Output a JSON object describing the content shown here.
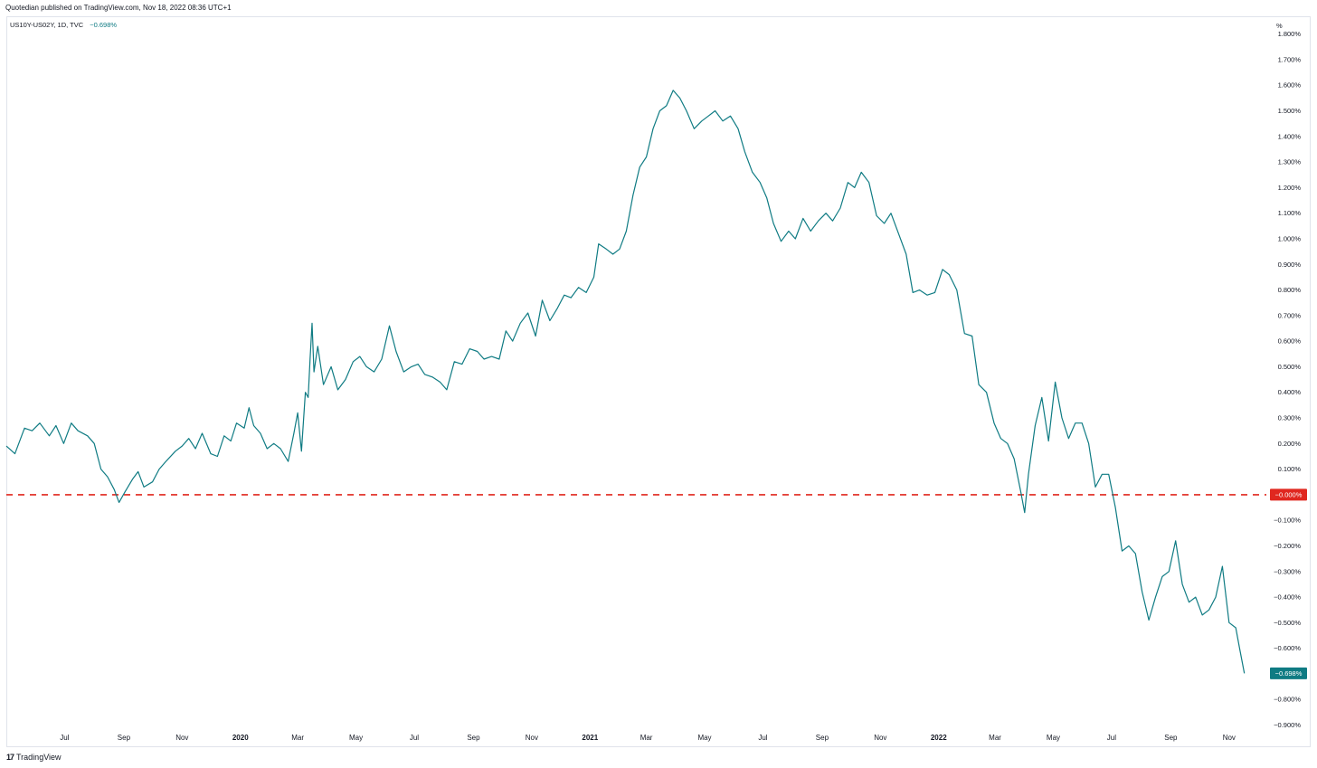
{
  "header": {
    "publish_text": "Quotedian published on TradingView.com, Nov 18, 2022 08:36 UTC+1"
  },
  "legend": {
    "symbol_text": "US10Y-US02Y, 1D, TVC",
    "last_value_text": "−0.698%"
  },
  "footer": {
    "logo_mark": "17",
    "logo_text": "TradingView"
  },
  "colors": {
    "series": "#0f7b83",
    "zero_line": "#e0271f",
    "badge_text": "#ffffff"
  },
  "chart_data": {
    "type": "line",
    "title": "",
    "xlabel": "",
    "ylabel": "%",
    "y_unit": "%",
    "ylim": [
      -0.93,
      1.82
    ],
    "xlim": [
      "2019-05-01",
      "2022-12-10"
    ],
    "grid": false,
    "legend": "top-left",
    "x_ticks": [
      {
        "date": "2019-07-01",
        "label": "Jul"
      },
      {
        "date": "2019-09-01",
        "label": "Sep"
      },
      {
        "date": "2019-11-01",
        "label": "Nov"
      },
      {
        "date": "2020-01-01",
        "label": "2020",
        "bold": true
      },
      {
        "date": "2020-03-01",
        "label": "Mar"
      },
      {
        "date": "2020-05-01",
        "label": "May"
      },
      {
        "date": "2020-07-01",
        "label": "Jul"
      },
      {
        "date": "2020-09-01",
        "label": "Sep"
      },
      {
        "date": "2020-11-01",
        "label": "Nov"
      },
      {
        "date": "2021-01-01",
        "label": "2021",
        "bold": true
      },
      {
        "date": "2021-03-01",
        "label": "Mar"
      },
      {
        "date": "2021-05-01",
        "label": "May"
      },
      {
        "date": "2021-07-01",
        "label": "Jul"
      },
      {
        "date": "2021-09-01",
        "label": "Sep"
      },
      {
        "date": "2021-11-01",
        "label": "Nov"
      },
      {
        "date": "2022-01-01",
        "label": "2022",
        "bold": true
      },
      {
        "date": "2022-03-01",
        "label": "Mar"
      },
      {
        "date": "2022-05-01",
        "label": "May"
      },
      {
        "date": "2022-07-01",
        "label": "Jul"
      },
      {
        "date": "2022-09-01",
        "label": "Sep"
      },
      {
        "date": "2022-11-01",
        "label": "Nov"
      }
    ],
    "y_ticks": [
      {
        "value": 1.8,
        "label": "1.800%"
      },
      {
        "value": 1.7,
        "label": "1.700%"
      },
      {
        "value": 1.6,
        "label": "1.600%"
      },
      {
        "value": 1.5,
        "label": "1.500%"
      },
      {
        "value": 1.4,
        "label": "1.400%"
      },
      {
        "value": 1.3,
        "label": "1.300%"
      },
      {
        "value": 1.2,
        "label": "1.200%"
      },
      {
        "value": 1.1,
        "label": "1.100%"
      },
      {
        "value": 1.0,
        "label": "1.000%"
      },
      {
        "value": 0.9,
        "label": "0.900%"
      },
      {
        "value": 0.8,
        "label": "0.800%"
      },
      {
        "value": 0.7,
        "label": "0.700%"
      },
      {
        "value": 0.6,
        "label": "0.600%"
      },
      {
        "value": 0.5,
        "label": "0.500%"
      },
      {
        "value": 0.4,
        "label": "0.400%"
      },
      {
        "value": 0.3,
        "label": "0.300%"
      },
      {
        "value": 0.2,
        "label": "0.200%"
      },
      {
        "value": 0.1,
        "label": "0.100%"
      },
      {
        "value": -0.1,
        "label": "−0.100%"
      },
      {
        "value": -0.2,
        "label": "−0.200%"
      },
      {
        "value": -0.3,
        "label": "−0.300%"
      },
      {
        "value": -0.4,
        "label": "−0.400%"
      },
      {
        "value": -0.5,
        "label": "−0.500%"
      },
      {
        "value": -0.6,
        "label": "−0.600%"
      },
      {
        "value": -0.7,
        "label": "−0.700%"
      },
      {
        "value": -0.8,
        "label": "−0.800%"
      },
      {
        "value": -0.9,
        "label": "−0.900%"
      }
    ],
    "horizontal_lines": [
      {
        "value": 0.0,
        "label": "−0.000%",
        "style": "dashed",
        "color": "#e0271f"
      }
    ],
    "last_value": {
      "value": -0.698,
      "label": "−0.698%"
    },
    "series": [
      {
        "color": "#0f7b83",
        "points": [
          [
            "2019-05-01",
            0.19
          ],
          [
            "2019-05-10",
            0.16
          ],
          [
            "2019-05-20",
            0.26
          ],
          [
            "2019-05-28",
            0.25
          ],
          [
            "2019-06-05",
            0.28
          ],
          [
            "2019-06-15",
            0.23
          ],
          [
            "2019-06-22",
            0.27
          ],
          [
            "2019-06-30",
            0.2
          ],
          [
            "2019-07-08",
            0.28
          ],
          [
            "2019-07-15",
            0.25
          ],
          [
            "2019-07-25",
            0.23
          ],
          [
            "2019-08-01",
            0.2
          ],
          [
            "2019-08-08",
            0.1
          ],
          [
            "2019-08-15",
            0.07
          ],
          [
            "2019-08-22",
            0.02
          ],
          [
            "2019-08-27",
            -0.03
          ],
          [
            "2019-09-02",
            0.01
          ],
          [
            "2019-09-10",
            0.06
          ],
          [
            "2019-09-16",
            0.09
          ],
          [
            "2019-09-22",
            0.03
          ],
          [
            "2019-10-01",
            0.05
          ],
          [
            "2019-10-08",
            0.1
          ],
          [
            "2019-10-15",
            0.13
          ],
          [
            "2019-10-25",
            0.17
          ],
          [
            "2019-11-01",
            0.19
          ],
          [
            "2019-11-08",
            0.22
          ],
          [
            "2019-11-15",
            0.18
          ],
          [
            "2019-11-22",
            0.24
          ],
          [
            "2019-12-01",
            0.16
          ],
          [
            "2019-12-08",
            0.15
          ],
          [
            "2019-12-15",
            0.23
          ],
          [
            "2019-12-22",
            0.21
          ],
          [
            "2019-12-28",
            0.28
          ],
          [
            "2020-01-05",
            0.26
          ],
          [
            "2020-01-10",
            0.34
          ],
          [
            "2020-01-15",
            0.27
          ],
          [
            "2020-01-22",
            0.24
          ],
          [
            "2020-01-29",
            0.18
          ],
          [
            "2020-02-05",
            0.2
          ],
          [
            "2020-02-12",
            0.18
          ],
          [
            "2020-02-20",
            0.13
          ],
          [
            "2020-02-26",
            0.24
          ],
          [
            "2020-03-01",
            0.32
          ],
          [
            "2020-03-05",
            0.17
          ],
          [
            "2020-03-09",
            0.4
          ],
          [
            "2020-03-12",
            0.38
          ],
          [
            "2020-03-14",
            0.53
          ],
          [
            "2020-03-16",
            0.67
          ],
          [
            "2020-03-18",
            0.48
          ],
          [
            "2020-03-22",
            0.58
          ],
          [
            "2020-03-28",
            0.43
          ],
          [
            "2020-04-05",
            0.5
          ],
          [
            "2020-04-12",
            0.41
          ],
          [
            "2020-04-20",
            0.45
          ],
          [
            "2020-04-28",
            0.52
          ],
          [
            "2020-05-05",
            0.54
          ],
          [
            "2020-05-12",
            0.5
          ],
          [
            "2020-05-20",
            0.48
          ],
          [
            "2020-05-28",
            0.53
          ],
          [
            "2020-06-05",
            0.66
          ],
          [
            "2020-06-12",
            0.56
          ],
          [
            "2020-06-20",
            0.48
          ],
          [
            "2020-06-28",
            0.5
          ],
          [
            "2020-07-05",
            0.51
          ],
          [
            "2020-07-12",
            0.47
          ],
          [
            "2020-07-20",
            0.46
          ],
          [
            "2020-07-28",
            0.44
          ],
          [
            "2020-08-04",
            0.41
          ],
          [
            "2020-08-12",
            0.52
          ],
          [
            "2020-08-20",
            0.51
          ],
          [
            "2020-08-28",
            0.57
          ],
          [
            "2020-09-05",
            0.56
          ],
          [
            "2020-09-12",
            0.53
          ],
          [
            "2020-09-20",
            0.54
          ],
          [
            "2020-09-28",
            0.53
          ],
          [
            "2020-10-05",
            0.64
          ],
          [
            "2020-10-12",
            0.6
          ],
          [
            "2020-10-20",
            0.67
          ],
          [
            "2020-10-28",
            0.71
          ],
          [
            "2020-11-05",
            0.62
          ],
          [
            "2020-11-12",
            0.76
          ],
          [
            "2020-11-20",
            0.68
          ],
          [
            "2020-11-28",
            0.73
          ],
          [
            "2020-12-05",
            0.78
          ],
          [
            "2020-12-12",
            0.77
          ],
          [
            "2020-12-20",
            0.81
          ],
          [
            "2020-12-28",
            0.79
          ],
          [
            "2021-01-05",
            0.85
          ],
          [
            "2021-01-10",
            0.98
          ],
          [
            "2021-01-18",
            0.96
          ],
          [
            "2021-01-25",
            0.94
          ],
          [
            "2021-02-01",
            0.96
          ],
          [
            "2021-02-08",
            1.03
          ],
          [
            "2021-02-15",
            1.17
          ],
          [
            "2021-02-22",
            1.28
          ],
          [
            "2021-03-01",
            1.32
          ],
          [
            "2021-03-08",
            1.43
          ],
          [
            "2021-03-15",
            1.5
          ],
          [
            "2021-03-22",
            1.52
          ],
          [
            "2021-03-29",
            1.58
          ],
          [
            "2021-04-05",
            1.55
          ],
          [
            "2021-04-12",
            1.5
          ],
          [
            "2021-04-20",
            1.43
          ],
          [
            "2021-04-28",
            1.46
          ],
          [
            "2021-05-05",
            1.48
          ],
          [
            "2021-05-12",
            1.5
          ],
          [
            "2021-05-20",
            1.46
          ],
          [
            "2021-05-28",
            1.48
          ],
          [
            "2021-06-05",
            1.43
          ],
          [
            "2021-06-12",
            1.34
          ],
          [
            "2021-06-20",
            1.26
          ],
          [
            "2021-06-28",
            1.22
          ],
          [
            "2021-07-05",
            1.16
          ],
          [
            "2021-07-12",
            1.06
          ],
          [
            "2021-07-20",
            0.99
          ],
          [
            "2021-07-28",
            1.03
          ],
          [
            "2021-08-04",
            1.0
          ],
          [
            "2021-08-12",
            1.08
          ],
          [
            "2021-08-20",
            1.03
          ],
          [
            "2021-08-28",
            1.07
          ],
          [
            "2021-09-05",
            1.1
          ],
          [
            "2021-09-12",
            1.07
          ],
          [
            "2021-09-20",
            1.12
          ],
          [
            "2021-09-28",
            1.22
          ],
          [
            "2021-10-05",
            1.2
          ],
          [
            "2021-10-12",
            1.26
          ],
          [
            "2021-10-20",
            1.22
          ],
          [
            "2021-10-28",
            1.09
          ],
          [
            "2021-11-05",
            1.06
          ],
          [
            "2021-11-12",
            1.1
          ],
          [
            "2021-11-20",
            1.02
          ],
          [
            "2021-11-28",
            0.94
          ],
          [
            "2021-12-05",
            0.79
          ],
          [
            "2021-12-12",
            0.8
          ],
          [
            "2021-12-20",
            0.78
          ],
          [
            "2021-12-28",
            0.79
          ],
          [
            "2022-01-05",
            0.88
          ],
          [
            "2022-01-12",
            0.86
          ],
          [
            "2022-01-20",
            0.8
          ],
          [
            "2022-01-28",
            0.63
          ],
          [
            "2022-02-05",
            0.62
          ],
          [
            "2022-02-12",
            0.43
          ],
          [
            "2022-02-20",
            0.4
          ],
          [
            "2022-02-28",
            0.28
          ],
          [
            "2022-03-07",
            0.22
          ],
          [
            "2022-03-14",
            0.2
          ],
          [
            "2022-03-21",
            0.14
          ],
          [
            "2022-03-28",
            0.01
          ],
          [
            "2022-04-01",
            -0.07
          ],
          [
            "2022-04-05",
            0.08
          ],
          [
            "2022-04-12",
            0.27
          ],
          [
            "2022-04-19",
            0.38
          ],
          [
            "2022-04-26",
            0.21
          ],
          [
            "2022-05-03",
            0.44
          ],
          [
            "2022-05-10",
            0.3
          ],
          [
            "2022-05-17",
            0.22
          ],
          [
            "2022-05-24",
            0.28
          ],
          [
            "2022-05-31",
            0.28
          ],
          [
            "2022-06-07",
            0.2
          ],
          [
            "2022-06-14",
            0.03
          ],
          [
            "2022-06-21",
            0.08
          ],
          [
            "2022-06-28",
            0.08
          ],
          [
            "2022-07-05",
            -0.05
          ],
          [
            "2022-07-12",
            -0.22
          ],
          [
            "2022-07-19",
            -0.2
          ],
          [
            "2022-07-26",
            -0.23
          ],
          [
            "2022-08-02",
            -0.38
          ],
          [
            "2022-08-09",
            -0.49
          ],
          [
            "2022-08-16",
            -0.4
          ],
          [
            "2022-08-23",
            -0.32
          ],
          [
            "2022-08-30",
            -0.3
          ],
          [
            "2022-09-06",
            -0.18
          ],
          [
            "2022-09-13",
            -0.35
          ],
          [
            "2022-09-20",
            -0.42
          ],
          [
            "2022-09-27",
            -0.4
          ],
          [
            "2022-10-04",
            -0.47
          ],
          [
            "2022-10-11",
            -0.45
          ],
          [
            "2022-10-18",
            -0.4
          ],
          [
            "2022-10-25",
            -0.28
          ],
          [
            "2022-11-01",
            -0.5
          ],
          [
            "2022-11-08",
            -0.52
          ],
          [
            "2022-11-12",
            -0.6
          ],
          [
            "2022-11-17",
            -0.698
          ]
        ]
      }
    ]
  }
}
